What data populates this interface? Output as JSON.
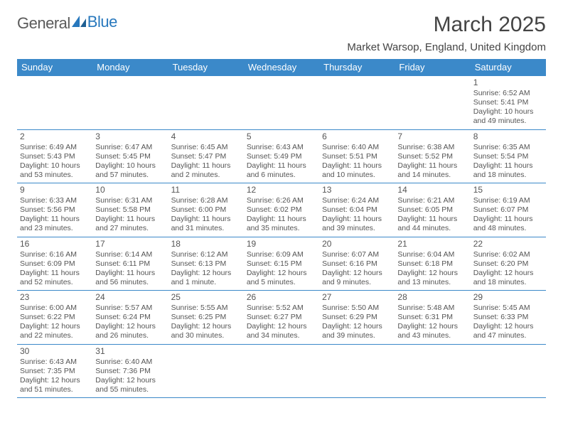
{
  "logo": {
    "text_a": "General",
    "text_b": "Blue"
  },
  "title": "March 2025",
  "location": "Market Warsop, England, United Kingdom",
  "colors": {
    "header_bg": "#3b89c9",
    "header_text": "#ffffff",
    "border": "#3b89c9",
    "body_text": "#555555",
    "title_text": "#444444",
    "logo_gray": "#5a5a5a",
    "logo_blue": "#2878bd"
  },
  "weekdays": [
    "Sunday",
    "Monday",
    "Tuesday",
    "Wednesday",
    "Thursday",
    "Friday",
    "Saturday"
  ],
  "weeks": [
    [
      null,
      null,
      null,
      null,
      null,
      null,
      {
        "n": "1",
        "sr": "Sunrise: 6:52 AM",
        "ss": "Sunset: 5:41 PM",
        "dl1": "Daylight: 10 hours",
        "dl2": "and 49 minutes."
      }
    ],
    [
      {
        "n": "2",
        "sr": "Sunrise: 6:49 AM",
        "ss": "Sunset: 5:43 PM",
        "dl1": "Daylight: 10 hours",
        "dl2": "and 53 minutes."
      },
      {
        "n": "3",
        "sr": "Sunrise: 6:47 AM",
        "ss": "Sunset: 5:45 PM",
        "dl1": "Daylight: 10 hours",
        "dl2": "and 57 minutes."
      },
      {
        "n": "4",
        "sr": "Sunrise: 6:45 AM",
        "ss": "Sunset: 5:47 PM",
        "dl1": "Daylight: 11 hours",
        "dl2": "and 2 minutes."
      },
      {
        "n": "5",
        "sr": "Sunrise: 6:43 AM",
        "ss": "Sunset: 5:49 PM",
        "dl1": "Daylight: 11 hours",
        "dl2": "and 6 minutes."
      },
      {
        "n": "6",
        "sr": "Sunrise: 6:40 AM",
        "ss": "Sunset: 5:51 PM",
        "dl1": "Daylight: 11 hours",
        "dl2": "and 10 minutes."
      },
      {
        "n": "7",
        "sr": "Sunrise: 6:38 AM",
        "ss": "Sunset: 5:52 PM",
        "dl1": "Daylight: 11 hours",
        "dl2": "and 14 minutes."
      },
      {
        "n": "8",
        "sr": "Sunrise: 6:35 AM",
        "ss": "Sunset: 5:54 PM",
        "dl1": "Daylight: 11 hours",
        "dl2": "and 18 minutes."
      }
    ],
    [
      {
        "n": "9",
        "sr": "Sunrise: 6:33 AM",
        "ss": "Sunset: 5:56 PM",
        "dl1": "Daylight: 11 hours",
        "dl2": "and 23 minutes."
      },
      {
        "n": "10",
        "sr": "Sunrise: 6:31 AM",
        "ss": "Sunset: 5:58 PM",
        "dl1": "Daylight: 11 hours",
        "dl2": "and 27 minutes."
      },
      {
        "n": "11",
        "sr": "Sunrise: 6:28 AM",
        "ss": "Sunset: 6:00 PM",
        "dl1": "Daylight: 11 hours",
        "dl2": "and 31 minutes."
      },
      {
        "n": "12",
        "sr": "Sunrise: 6:26 AM",
        "ss": "Sunset: 6:02 PM",
        "dl1": "Daylight: 11 hours",
        "dl2": "and 35 minutes."
      },
      {
        "n": "13",
        "sr": "Sunrise: 6:24 AM",
        "ss": "Sunset: 6:04 PM",
        "dl1": "Daylight: 11 hours",
        "dl2": "and 39 minutes."
      },
      {
        "n": "14",
        "sr": "Sunrise: 6:21 AM",
        "ss": "Sunset: 6:05 PM",
        "dl1": "Daylight: 11 hours",
        "dl2": "and 44 minutes."
      },
      {
        "n": "15",
        "sr": "Sunrise: 6:19 AM",
        "ss": "Sunset: 6:07 PM",
        "dl1": "Daylight: 11 hours",
        "dl2": "and 48 minutes."
      }
    ],
    [
      {
        "n": "16",
        "sr": "Sunrise: 6:16 AM",
        "ss": "Sunset: 6:09 PM",
        "dl1": "Daylight: 11 hours",
        "dl2": "and 52 minutes."
      },
      {
        "n": "17",
        "sr": "Sunrise: 6:14 AM",
        "ss": "Sunset: 6:11 PM",
        "dl1": "Daylight: 11 hours",
        "dl2": "and 56 minutes."
      },
      {
        "n": "18",
        "sr": "Sunrise: 6:12 AM",
        "ss": "Sunset: 6:13 PM",
        "dl1": "Daylight: 12 hours",
        "dl2": "and 1 minute."
      },
      {
        "n": "19",
        "sr": "Sunrise: 6:09 AM",
        "ss": "Sunset: 6:15 PM",
        "dl1": "Daylight: 12 hours",
        "dl2": "and 5 minutes."
      },
      {
        "n": "20",
        "sr": "Sunrise: 6:07 AM",
        "ss": "Sunset: 6:16 PM",
        "dl1": "Daylight: 12 hours",
        "dl2": "and 9 minutes."
      },
      {
        "n": "21",
        "sr": "Sunrise: 6:04 AM",
        "ss": "Sunset: 6:18 PM",
        "dl1": "Daylight: 12 hours",
        "dl2": "and 13 minutes."
      },
      {
        "n": "22",
        "sr": "Sunrise: 6:02 AM",
        "ss": "Sunset: 6:20 PM",
        "dl1": "Daylight: 12 hours",
        "dl2": "and 18 minutes."
      }
    ],
    [
      {
        "n": "23",
        "sr": "Sunrise: 6:00 AM",
        "ss": "Sunset: 6:22 PM",
        "dl1": "Daylight: 12 hours",
        "dl2": "and 22 minutes."
      },
      {
        "n": "24",
        "sr": "Sunrise: 5:57 AM",
        "ss": "Sunset: 6:24 PM",
        "dl1": "Daylight: 12 hours",
        "dl2": "and 26 minutes."
      },
      {
        "n": "25",
        "sr": "Sunrise: 5:55 AM",
        "ss": "Sunset: 6:25 PM",
        "dl1": "Daylight: 12 hours",
        "dl2": "and 30 minutes."
      },
      {
        "n": "26",
        "sr": "Sunrise: 5:52 AM",
        "ss": "Sunset: 6:27 PM",
        "dl1": "Daylight: 12 hours",
        "dl2": "and 34 minutes."
      },
      {
        "n": "27",
        "sr": "Sunrise: 5:50 AM",
        "ss": "Sunset: 6:29 PM",
        "dl1": "Daylight: 12 hours",
        "dl2": "and 39 minutes."
      },
      {
        "n": "28",
        "sr": "Sunrise: 5:48 AM",
        "ss": "Sunset: 6:31 PM",
        "dl1": "Daylight: 12 hours",
        "dl2": "and 43 minutes."
      },
      {
        "n": "29",
        "sr": "Sunrise: 5:45 AM",
        "ss": "Sunset: 6:33 PM",
        "dl1": "Daylight: 12 hours",
        "dl2": "and 47 minutes."
      }
    ],
    [
      {
        "n": "30",
        "sr": "Sunrise: 6:43 AM",
        "ss": "Sunset: 7:35 PM",
        "dl1": "Daylight: 12 hours",
        "dl2": "and 51 minutes."
      },
      {
        "n": "31",
        "sr": "Sunrise: 6:40 AM",
        "ss": "Sunset: 7:36 PM",
        "dl1": "Daylight: 12 hours",
        "dl2": "and 55 minutes."
      },
      null,
      null,
      null,
      null,
      null
    ]
  ]
}
